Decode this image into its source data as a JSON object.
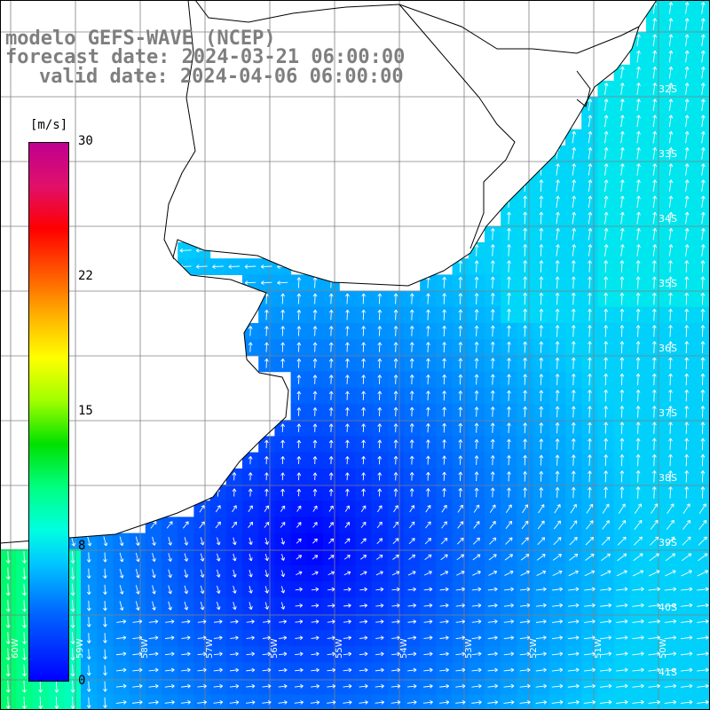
{
  "titles": {
    "line1": "modelo GEFS-WAVE (NCEP)",
    "line2": "forecast date: 2024-03-21 06:00:00",
    "line3": "valid date: 2024-04-06 06:00:00"
  },
  "colorbar": {
    "unit": "[m/s]",
    "ticks": [
      "30",
      "22",
      "15",
      "8",
      "0"
    ],
    "colors": [
      "#0000ff",
      "#00c8ff",
      "#00ff80",
      "#ffff00",
      "#ff0000",
      "#c00090"
    ]
  },
  "latitude_labels": [
    "32S",
    "33S",
    "34S",
    "35S",
    "36S",
    "37S",
    "38S",
    "39S",
    "40S",
    "41S"
  ],
  "longitude_labels": [
    "60W",
    "59W",
    "58W",
    "57W",
    "56W",
    "55W",
    "54W",
    "53W",
    "52W",
    "51W",
    "50W"
  ],
  "chart_data": {
    "type": "heatmap",
    "variable": "wind speed",
    "unit": "m/s",
    "color_scale_range": [
      0,
      30
    ],
    "colorbar_ticks": [
      0,
      8,
      15,
      22,
      30
    ],
    "arrows": "white wind direction vectors over ocean"
  }
}
